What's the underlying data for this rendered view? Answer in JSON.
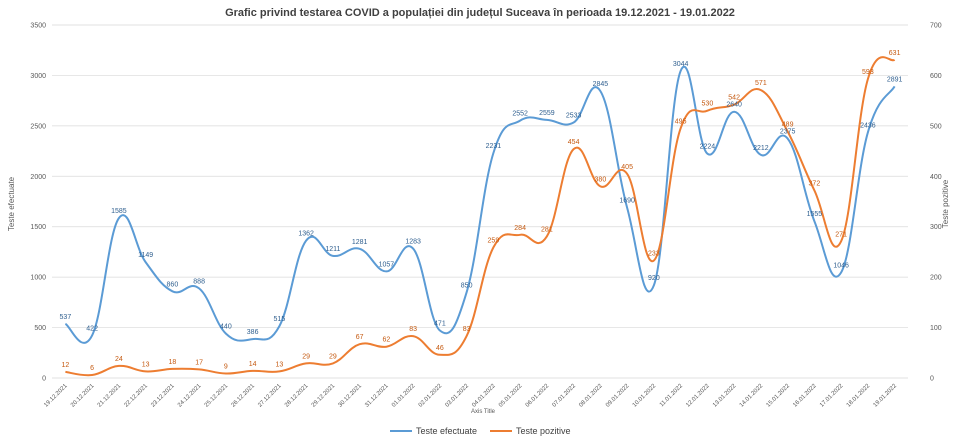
{
  "chart_data": {
    "type": "line",
    "title": "Grafic privind testarea COVID a populației din județul Suceava în perioada 19.12.2021 - 19.01.2022",
    "xlabel": "Axis Title",
    "ylabel": "Teste efectuate",
    "y2label": "Teste pozitive",
    "ylim": [
      0,
      3500
    ],
    "y2lim": [
      0,
      700
    ],
    "yticks": [
      "0",
      "500",
      "1000",
      "1500",
      "2000",
      "2500",
      "3000",
      "3500"
    ],
    "y2ticks": [
      "0",
      "100",
      "200",
      "300",
      "400",
      "500",
      "600",
      "700"
    ],
    "grid": true,
    "legend": "bottom",
    "categories": [
      "19.12.2021",
      "20.12.2021",
      "21.12.2021",
      "22.12.2021",
      "23.12.2021",
      "24.12.2021",
      "25.12.2021",
      "26.12.2021",
      "27.12.2021",
      "28.12.2021",
      "29.12.2021",
      "30.12.2021",
      "31.12.2021",
      "01.01.2022",
      "02.01.2022",
      "03.01.2022",
      "04.01.2022",
      "05.01.2022",
      "06.01.2022",
      "07.01.2022",
      "08.01.2022",
      "09.01.2022",
      "10.01.2022",
      "11.01.2022",
      "12.01.2022",
      "13.01.2022",
      "14.01.2022",
      "15.01.2022",
      "16.01.2022",
      "17.01.2022",
      "18.01.2022",
      "19.01.2022"
    ],
    "series": [
      {
        "name": "Teste efectuate",
        "axis": "left",
        "color": "#5B9BD5",
        "values": [
          537,
          422,
          1585,
          1149,
          860,
          888,
          440,
          386,
          515,
          1362,
          1211,
          1281,
          1057,
          1283,
          471,
          850,
          2231,
          2552,
          2559,
          2533,
          2845,
          1690,
          920,
          3044,
          2224,
          2640,
          2212,
          2375,
          1555,
          1046,
          2436,
          2891
        ]
      },
      {
        "name": "Teste pozitive",
        "axis": "right",
        "color": "#ED7D31",
        "values": [
          12,
          6,
          24,
          13,
          18,
          17,
          9,
          14,
          13,
          29,
          29,
          67,
          62,
          83,
          46,
          83,
          259,
          284,
          281,
          454,
          380,
          405,
          233,
          495,
          530,
          542,
          571,
          489,
          372,
          271,
          593,
          631
        ]
      }
    ]
  }
}
